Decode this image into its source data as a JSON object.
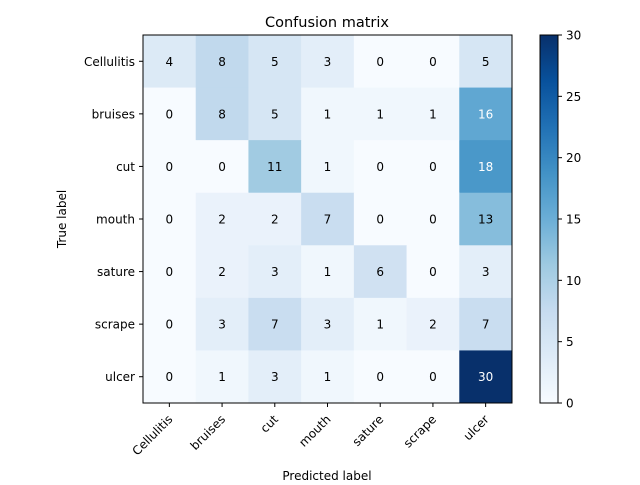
{
  "chart_data": {
    "type": "heatmap",
    "title": "Confusion matrix",
    "xlabel": "Predicted label",
    "ylabel": "True label",
    "x_categories": [
      "Cellulitis",
      "bruises",
      "cut",
      "mouth",
      "sature",
      "scrape",
      "ulcer"
    ],
    "y_categories": [
      "Cellulitis",
      "bruises",
      "cut",
      "mouth",
      "sature",
      "scrape",
      "ulcer"
    ],
    "values": [
      [
        4,
        8,
        5,
        3,
        0,
        0,
        5
      ],
      [
        0,
        8,
        5,
        1,
        1,
        1,
        16
      ],
      [
        0,
        0,
        11,
        1,
        0,
        0,
        18
      ],
      [
        0,
        2,
        2,
        7,
        0,
        0,
        13
      ],
      [
        0,
        2,
        3,
        1,
        6,
        0,
        3
      ],
      [
        0,
        3,
        7,
        3,
        1,
        2,
        7
      ],
      [
        0,
        1,
        3,
        1,
        0,
        0,
        30
      ]
    ],
    "colormap": "Blues",
    "color_range": [
      0,
      30
    ],
    "colorbar_ticks": [
      0,
      5,
      10,
      15,
      20,
      25,
      30
    ],
    "text_color_threshold": 15,
    "text_color_dark": "#000000",
    "text_color_light": "#ffffff"
  }
}
